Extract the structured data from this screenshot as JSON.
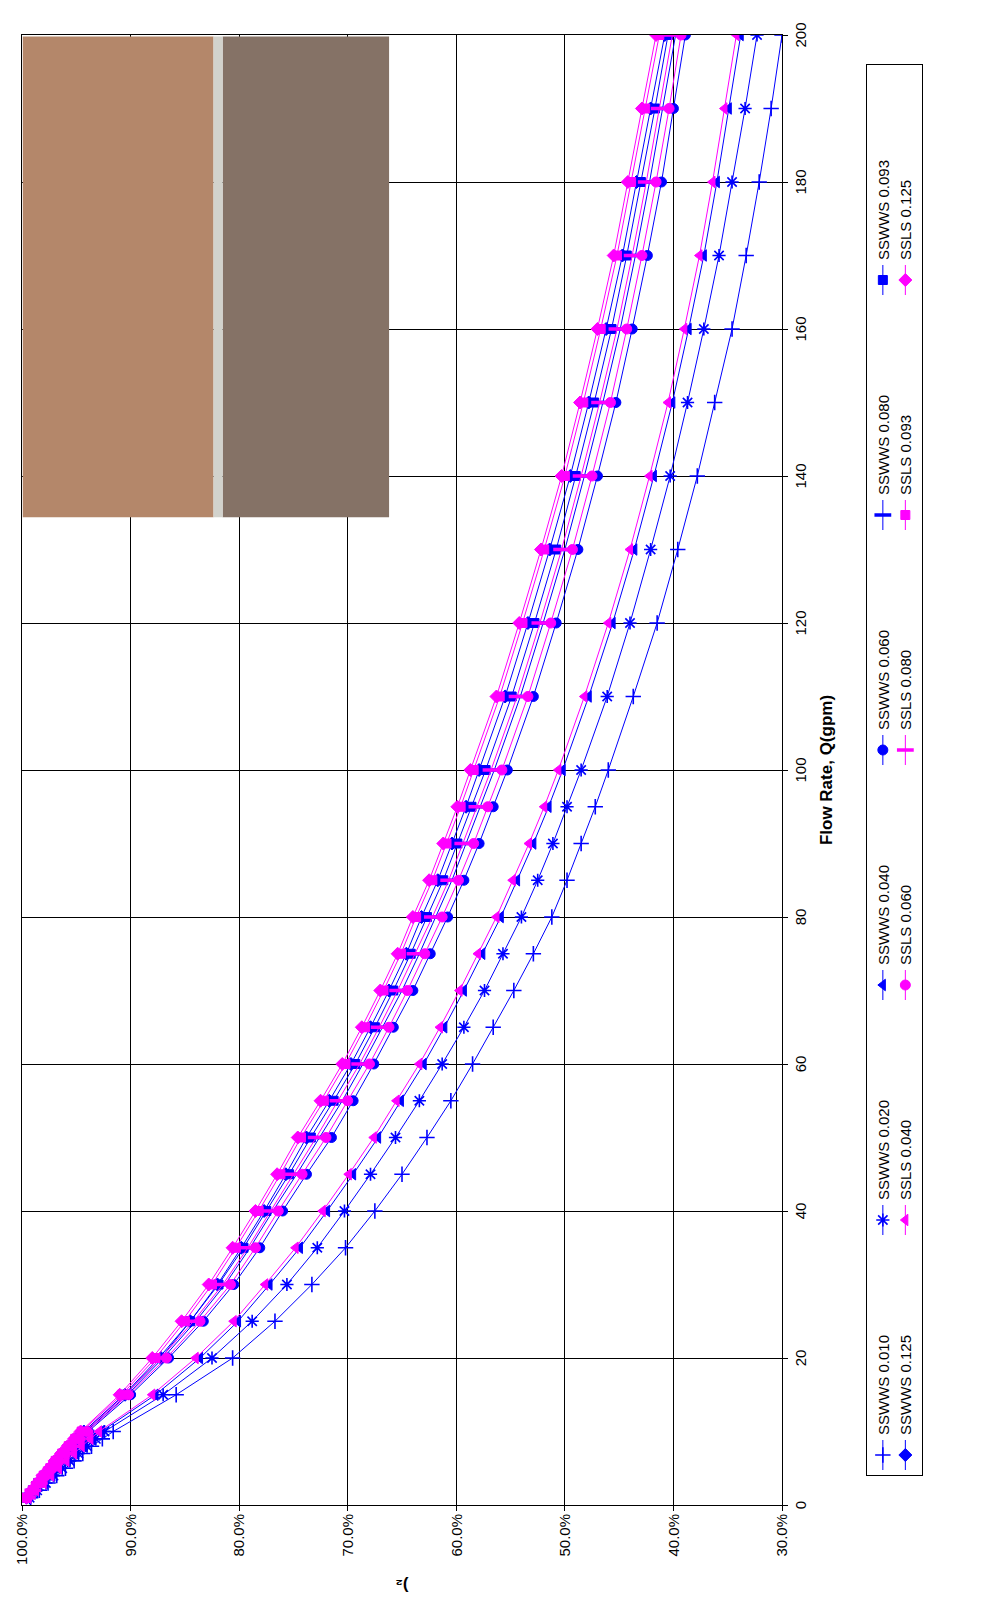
{
  "chart_data": {
    "type": "line",
    "x_label": "Flow Rate, Q(gpm)",
    "y_label": ")₂",
    "x": [
      1,
      2,
      3,
      4,
      5,
      6,
      7,
      8,
      9,
      10,
      15,
      20,
      25,
      30,
      35,
      40,
      45,
      50,
      55,
      60,
      65,
      70,
      75,
      80,
      85,
      90,
      95,
      100,
      110,
      120,
      130,
      140,
      150,
      160,
      170,
      180,
      190,
      200
    ],
    "xlim": [
      0,
      200
    ],
    "xticks": [
      0,
      20,
      40,
      60,
      80,
      100,
      120,
      140,
      160,
      180,
      200
    ],
    "ylim": [
      30,
      100
    ],
    "yticks": [
      {
        "value": 30,
        "label": "30.0%"
      },
      {
        "value": 40,
        "label": "40.0%"
      },
      {
        "value": 50,
        "label": "50.0%"
      },
      {
        "value": 60,
        "label": "60.0%"
      },
      {
        "value": 70,
        "label": "70.0%"
      },
      {
        "value": 80,
        "label": "80.0%"
      },
      {
        "value": 90,
        "label": "90.0%"
      },
      {
        "value": 100,
        "label": "100.0%"
      }
    ],
    "grid": true,
    "legend": "bottom",
    "series": [
      {
        "name": "SSWWS 0.010",
        "color": "#0000ff",
        "marker": "plus",
        "values": [
          99.2,
          98.4,
          97.6,
          96.8,
          96.0,
          95.2,
          94.4,
          93.6,
          92.6,
          91.6,
          85.8,
          80.6,
          76.7,
          73.3,
          70.2,
          67.5,
          65.0,
          62.7,
          60.5,
          58.5,
          56.6,
          54.7,
          52.9,
          51.2,
          49.8,
          48.5,
          47.2,
          46.0,
          43.7,
          41.5,
          39.6,
          37.8,
          36.2,
          34.6,
          33.3,
          32.1,
          31.0,
          30.0
        ]
      },
      {
        "name": "SSWWS 0.020",
        "color": "#0000ff",
        "marker": "asterisk",
        "values": [
          99.3,
          98.6,
          97.8,
          97.1,
          96.3,
          95.6,
          94.8,
          94.0,
          93.2,
          92.4,
          87.0,
          82.5,
          78.8,
          75.6,
          72.8,
          70.3,
          67.9,
          65.6,
          63.4,
          61.3,
          59.3,
          57.4,
          55.7,
          54.0,
          52.5,
          51.1,
          49.8,
          48.5,
          46.1,
          44.0,
          42.1,
          40.3,
          38.7,
          37.2,
          35.8,
          34.6,
          33.4,
          32.3
        ]
      },
      {
        "name": "SSWWS 0.040",
        "color": "#0000ff",
        "marker": "triangle",
        "values": [
          99.4,
          98.7,
          97.9,
          97.2,
          96.5,
          95.8,
          95.0,
          94.3,
          93.5,
          92.7,
          87.7,
          83.6,
          80.1,
          77.2,
          74.4,
          71.9,
          69.5,
          67.2,
          65.1,
          63.0,
          61.1,
          59.3,
          57.6,
          55.9,
          54.4,
          52.9,
          51.5,
          50.2,
          47.8,
          45.6,
          43.6,
          41.8,
          40.1,
          38.6,
          37.2,
          36.0,
          34.9,
          33.8
        ]
      },
      {
        "name": "SSWWS 0.060",
        "color": "#0000ff",
        "marker": "circle",
        "values": [
          99.5,
          98.9,
          98.3,
          97.7,
          97.1,
          96.5,
          95.9,
          95.3,
          94.6,
          93.9,
          90.0,
          86.5,
          83.3,
          80.5,
          78.1,
          76.0,
          73.8,
          71.5,
          69.5,
          67.6,
          65.8,
          64.0,
          62.4,
          60.8,
          59.3,
          57.9,
          56.6,
          55.3,
          52.9,
          50.8,
          48.8,
          47.0,
          45.3,
          43.8,
          42.4,
          41.1,
          40.0,
          38.9
        ]
      },
      {
        "name": "SSWWS 0.080",
        "color": "#0000ff",
        "marker": "dash",
        "values": [
          99.5,
          98.9,
          98.4,
          97.8,
          97.2,
          96.7,
          96.1,
          95.5,
          94.8,
          94.1,
          90.3,
          87.0,
          84.0,
          81.3,
          79.0,
          76.9,
          74.7,
          72.6,
          70.5,
          68.6,
          66.8,
          65.0,
          63.4,
          61.9,
          60.4,
          59.1,
          57.8,
          56.5,
          54.1,
          52.0,
          50.0,
          48.2,
          46.5,
          44.9,
          43.5,
          42.2,
          41.0,
          39.8
        ]
      },
      {
        "name": "SSWWS 0.093",
        "color": "#0000ff",
        "marker": "square",
        "values": [
          99.6,
          99.0,
          98.5,
          97.9,
          97.3,
          96.8,
          96.2,
          95.6,
          95.0,
          94.3,
          90.6,
          87.4,
          84.5,
          81.9,
          79.6,
          77.5,
          75.4,
          73.4,
          71.3,
          69.3,
          67.5,
          65.8,
          64.2,
          62.7,
          61.2,
          59.9,
          58.6,
          57.3,
          54.9,
          52.8,
          50.8,
          49.0,
          47.3,
          45.7,
          44.3,
          43.0,
          41.7,
          40.5
        ]
      },
      {
        "name": "SSWWS 0.125",
        "color": "#0000ff",
        "marker": "diamond",
        "values": [
          99.6,
          99.0,
          98.5,
          97.9,
          97.3,
          96.8,
          96.2,
          95.6,
          95.0,
          94.3,
          90.5,
          87.2,
          84.5,
          82.0,
          79.8,
          77.7,
          75.7,
          73.8,
          71.7,
          69.7,
          67.9,
          66.2,
          64.6,
          63.2,
          61.7,
          60.4,
          59.1,
          57.9,
          55.5,
          53.4,
          51.4,
          49.5,
          47.8,
          46.2,
          44.7,
          43.4,
          42.1,
          40.8
        ]
      },
      {
        "name": "SSLS 0.040",
        "color": "#ff00ff",
        "marker": "triangle",
        "values": [
          99.4,
          98.7,
          98.0,
          97.3,
          96.6,
          95.9,
          95.2,
          94.5,
          93.7,
          92.9,
          88.0,
          84.0,
          80.5,
          77.6,
          74.8,
          72.3,
          69.9,
          67.6,
          65.5,
          63.4,
          61.5,
          59.7,
          58.0,
          56.3,
          54.8,
          53.3,
          51.9,
          50.6,
          48.2,
          46.0,
          44.0,
          42.2,
          40.5,
          39.0,
          37.6,
          36.4,
          35.3,
          34.2
        ]
      },
      {
        "name": "SSLS 0.060",
        "color": "#ff00ff",
        "marker": "circle",
        "values": [
          99.5,
          98.9,
          98.3,
          97.8,
          97.2,
          96.6,
          96.0,
          95.4,
          94.7,
          94.0,
          90.2,
          86.7,
          83.6,
          80.8,
          78.5,
          76.4,
          74.2,
          72.0,
          70.0,
          68.0,
          66.2,
          64.5,
          62.9,
          61.3,
          59.8,
          58.4,
          57.1,
          55.8,
          53.4,
          51.3,
          49.3,
          47.5,
          45.8,
          44.3,
          42.9,
          41.6,
          40.4,
          39.3
        ]
      },
      {
        "name": "SSLS 0.080",
        "color": "#ff00ff",
        "marker": "dash",
        "values": [
          99.5,
          99.0,
          98.4,
          97.9,
          97.3,
          96.7,
          96.1,
          95.5,
          94.9,
          94.2,
          90.5,
          87.2,
          84.2,
          81.5,
          79.2,
          77.1,
          75.0,
          72.9,
          70.9,
          68.9,
          67.1,
          65.4,
          63.8,
          62.2,
          60.7,
          59.4,
          58.1,
          56.8,
          54.4,
          52.3,
          50.3,
          48.5,
          46.8,
          45.2,
          43.8,
          42.5,
          41.3,
          40.1
        ]
      },
      {
        "name": "SSLS 0.093",
        "color": "#ff00ff",
        "marker": "square",
        "values": [
          99.6,
          99.0,
          98.5,
          98.0,
          97.4,
          96.9,
          96.3,
          95.7,
          95.1,
          94.5,
          90.8,
          87.7,
          85.0,
          82.5,
          80.3,
          78.2,
          76.2,
          74.3,
          72.2,
          70.2,
          68.4,
          66.7,
          65.1,
          63.7,
          62.2,
          60.9,
          59.6,
          58.4,
          56.0,
          53.9,
          51.9,
          50.0,
          48.3,
          46.7,
          45.2,
          43.9,
          42.6,
          41.3
        ]
      },
      {
        "name": "SSLS 0.125",
        "color": "#ff00ff",
        "marker": "diamond",
        "values": [
          99.6,
          99.1,
          98.6,
          98.1,
          97.5,
          97.0,
          96.4,
          95.8,
          95.2,
          94.6,
          91.0,
          88.0,
          85.3,
          82.8,
          80.6,
          78.5,
          76.5,
          74.6,
          72.5,
          70.5,
          68.7,
          67.0,
          65.4,
          64.0,
          62.5,
          61.2,
          59.9,
          58.7,
          56.3,
          54.2,
          52.2,
          50.3,
          48.6,
          47.0,
          45.5,
          44.2,
          42.9,
          41.6
        ]
      }
    ]
  }
}
